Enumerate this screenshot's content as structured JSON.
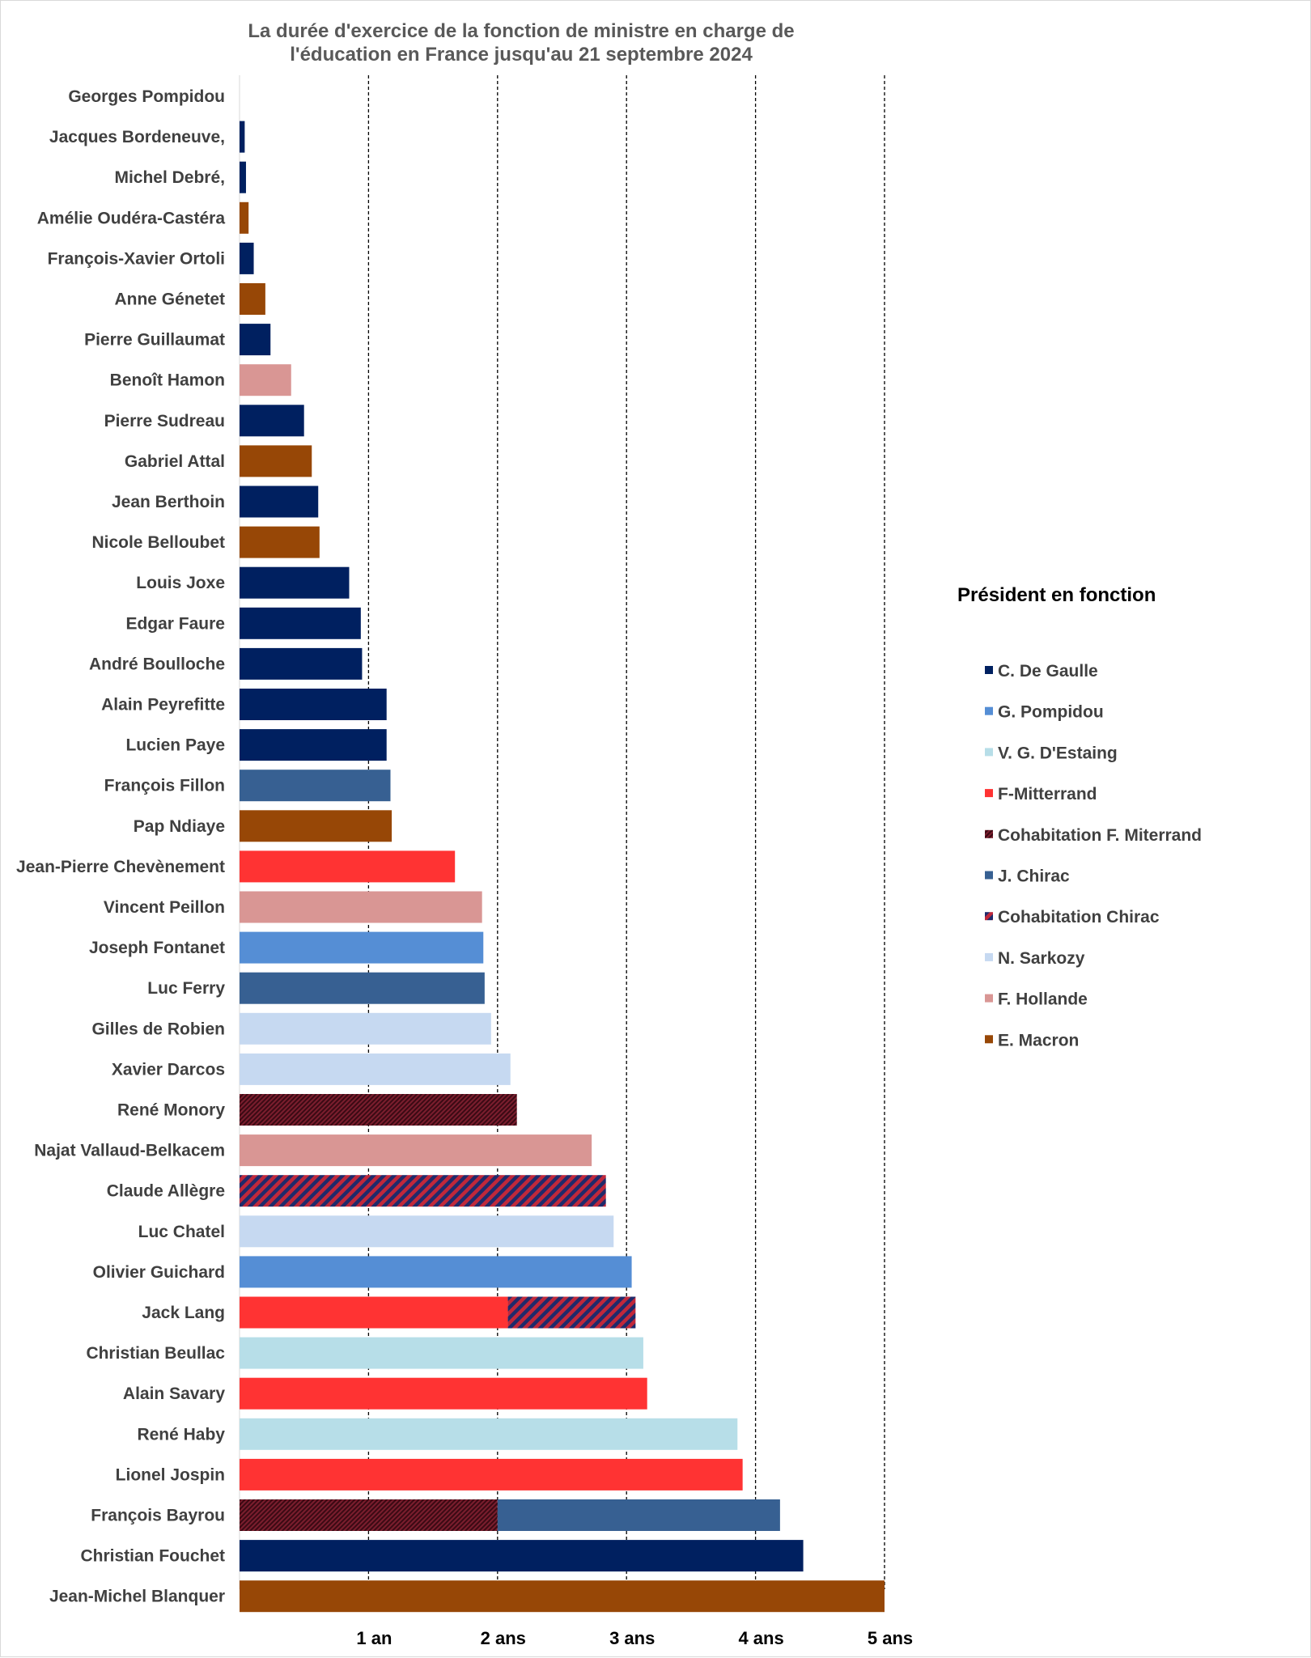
{
  "chart_data": {
    "type": "bar",
    "orientation": "horizontal",
    "stacked": true,
    "title_lines": [
      "La durée d'exercice de la fonction de ministre en charge de",
      "l'éducation en France jusqu'au 21 septembre 2024"
    ],
    "xlim": [
      0,
      5
    ],
    "ticks": [
      {
        "value": 1,
        "label": "1 an"
      },
      {
        "value": 2,
        "label": "2 ans"
      },
      {
        "value": 3,
        "label": "3 ans"
      },
      {
        "value": 4,
        "label": "4 ans"
      },
      {
        "value": 5,
        "label": "5 ans"
      }
    ],
    "gridlines": "vertical-dashed",
    "legend": {
      "title": "Président en fonction",
      "position": "right",
      "entries": [
        {
          "key": "gaulle",
          "label": "C. De Gaulle",
          "color": "#002060",
          "pattern": "solid"
        },
        {
          "key": "pompidou",
          "label": "G. Pompidou",
          "color": "#558ED5",
          "pattern": "solid"
        },
        {
          "key": "destaing",
          "label": "V. G. D'Estaing",
          "color": "#B7DEE8",
          "pattern": "solid"
        },
        {
          "key": "mitterrand",
          "label": "F-Mitterrand",
          "color": "#FF3333",
          "pattern": "solid"
        },
        {
          "key": "cohab_mitterrand",
          "label": "Cohabitation F. Miterrand",
          "color": "#7B1E2E",
          "pattern": "hatch-fine",
          "color2": "#3B0A14"
        },
        {
          "key": "chirac",
          "label": "J. Chirac",
          "color": "#376092",
          "pattern": "solid"
        },
        {
          "key": "cohab_chirac",
          "label": "Cohabitation Chirac",
          "color": "#1F2A6B",
          "pattern": "hatch-wide",
          "color2": "#C0283B"
        },
        {
          "key": "sarkozy",
          "label": "N. Sarkozy",
          "color": "#C6D9F1",
          "pattern": "solid"
        },
        {
          "key": "hollande",
          "label": "F. Hollande",
          "color": "#D99694",
          "pattern": "solid"
        },
        {
          "key": "macron",
          "label": "E. Macron",
          "color": "#974706",
          "pattern": "solid"
        }
      ]
    },
    "bars": [
      {
        "name": "Georges Pompidou",
        "segments": []
      },
      {
        "name": "Jacques Bordeneuve,",
        "segments": [
          {
            "series": "gaulle",
            "value": 0.04
          }
        ]
      },
      {
        "name": "Michel Debré,",
        "segments": [
          {
            "series": "gaulle",
            "value": 0.05
          }
        ]
      },
      {
        "name": "Amélie Oudéra-Castéra",
        "segments": [
          {
            "series": "macron",
            "value": 0.07
          }
        ]
      },
      {
        "name": "François-Xavier Ortoli",
        "segments": [
          {
            "series": "gaulle",
            "value": 0.11
          }
        ]
      },
      {
        "name": "Anne Génetet",
        "segments": [
          {
            "series": "macron",
            "value": 0.2
          }
        ]
      },
      {
        "name": "Pierre Guillaumat",
        "segments": [
          {
            "series": "gaulle",
            "value": 0.24
          }
        ]
      },
      {
        "name": "Benoît Hamon",
        "segments": [
          {
            "series": "hollande",
            "value": 0.4
          }
        ]
      },
      {
        "name": "Pierre Sudreau",
        "segments": [
          {
            "series": "gaulle",
            "value": 0.5
          }
        ]
      },
      {
        "name": "Gabriel Attal",
        "segments": [
          {
            "series": "macron",
            "value": 0.56
          }
        ]
      },
      {
        "name": "Jean Berthoin",
        "segments": [
          {
            "series": "gaulle",
            "value": 0.61
          }
        ]
      },
      {
        "name": "Nicole Belloubet",
        "segments": [
          {
            "series": "macron",
            "value": 0.62
          }
        ]
      },
      {
        "name": "Louis Joxe",
        "segments": [
          {
            "series": "gaulle",
            "value": 0.85
          }
        ]
      },
      {
        "name": "Edgar Faure",
        "segments": [
          {
            "series": "gaulle",
            "value": 0.94
          }
        ]
      },
      {
        "name": "André Boulloche",
        "segments": [
          {
            "series": "gaulle",
            "value": 0.95
          }
        ]
      },
      {
        "name": "Alain Peyrefitte",
        "segments": [
          {
            "series": "gaulle",
            "value": 1.14
          }
        ]
      },
      {
        "name": "Lucien Paye",
        "segments": [
          {
            "series": "gaulle",
            "value": 1.14
          }
        ]
      },
      {
        "name": "François Fillon",
        "segments": [
          {
            "series": "chirac",
            "value": 1.17
          }
        ]
      },
      {
        "name": "Pap Ndiaye",
        "segments": [
          {
            "series": "macron",
            "value": 1.18
          }
        ]
      },
      {
        "name": "Jean-Pierre Chevènement",
        "segments": [
          {
            "series": "mitterrand",
            "value": 1.67
          }
        ]
      },
      {
        "name": "Vincent Peillon",
        "segments": [
          {
            "series": "hollande",
            "value": 1.88
          }
        ]
      },
      {
        "name": "Joseph Fontanet",
        "segments": [
          {
            "series": "pompidou",
            "value": 1.89
          }
        ]
      },
      {
        "name": "Luc Ferry",
        "segments": [
          {
            "series": "chirac",
            "value": 1.9
          }
        ]
      },
      {
        "name": "Gilles de Robien",
        "segments": [
          {
            "series": "sarkozy",
            "value": 1.95
          }
        ]
      },
      {
        "name": "Xavier Darcos",
        "segments": [
          {
            "series": "sarkozy",
            "value": 2.1
          }
        ]
      },
      {
        "name": "René Monory",
        "segments": [
          {
            "series": "cohab_mitterrand",
            "value": 2.15
          }
        ]
      },
      {
        "name": "Najat Vallaud-Belkacem",
        "segments": [
          {
            "series": "hollande",
            "value": 2.73
          }
        ]
      },
      {
        "name": "Claude Allègre",
        "segments": [
          {
            "series": "cohab_chirac",
            "value": 2.84
          }
        ]
      },
      {
        "name": "Luc Chatel",
        "segments": [
          {
            "series": "sarkozy",
            "value": 2.9
          }
        ]
      },
      {
        "name": "Olivier Guichard",
        "segments": [
          {
            "series": "pompidou",
            "value": 3.04
          }
        ]
      },
      {
        "name": "Jack Lang",
        "segments": [
          {
            "series": "mitterrand",
            "value": 2.08
          },
          {
            "series": "cohab_chirac",
            "value": 0.99
          }
        ]
      },
      {
        "name": "Christian Beullac",
        "segments": [
          {
            "series": "destaing",
            "value": 3.13
          }
        ]
      },
      {
        "name": "Alain Savary",
        "segments": [
          {
            "series": "mitterrand",
            "value": 3.16
          }
        ]
      },
      {
        "name": "René Haby",
        "segments": [
          {
            "series": "destaing",
            "value": 3.86
          }
        ]
      },
      {
        "name": "Lionel Jospin",
        "segments": [
          {
            "series": "mitterrand",
            "value": 3.9
          }
        ]
      },
      {
        "name": "François Bayrou",
        "segments": [
          {
            "series": "cohab_mitterrand",
            "value": 2.0
          },
          {
            "series": "chirac",
            "value": 2.19
          }
        ]
      },
      {
        "name": "Christian Fouchet",
        "segments": [
          {
            "series": "gaulle",
            "value": 4.37
          }
        ]
      },
      {
        "name": "Jean-Michel Blanquer",
        "segments": [
          {
            "series": "macron",
            "value": 5.0
          }
        ]
      }
    ]
  }
}
